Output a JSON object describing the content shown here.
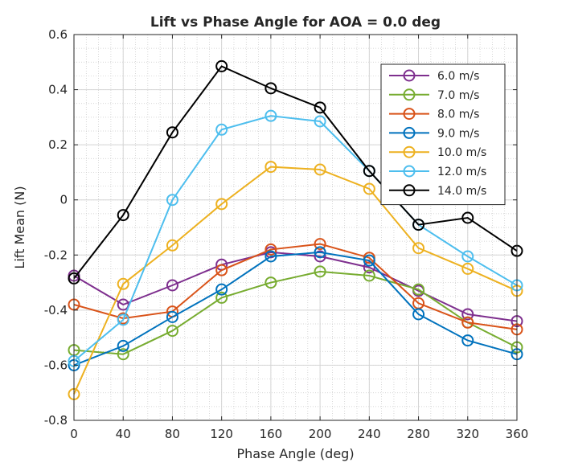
{
  "chart_data": {
    "type": "line",
    "title": "Lift vs Phase Angle for AOA = 0.0 deg",
    "xlabel": "Phase Angle (deg)",
    "ylabel": "Lift Mean (N)",
    "xlim": [
      0,
      360
    ],
    "ylim": [
      -0.8,
      0.6
    ],
    "xticks": [
      0,
      40,
      80,
      120,
      160,
      200,
      240,
      280,
      320,
      360
    ],
    "yticks": [
      -0.8,
      -0.6,
      -0.4,
      -0.2,
      0,
      0.2,
      0.4,
      0.6
    ],
    "ytick_labels": [
      "-0.8",
      "-0.6",
      "-0.4",
      "-0.2",
      "0",
      "0.2",
      "0.4",
      "0.6"
    ],
    "grid": true,
    "minor_grid": true,
    "legend_position": "top-right",
    "x": [
      0,
      40,
      80,
      120,
      160,
      200,
      240,
      280,
      320,
      360
    ],
    "series": [
      {
        "name": "6.0 m/s",
        "color": "#7E2F8E",
        "values": [
          -0.275,
          -0.38,
          -0.31,
          -0.235,
          -0.19,
          -0.205,
          -0.245,
          -0.33,
          -0.415,
          -0.44
        ]
      },
      {
        "name": "7.0 m/s",
        "color": "#77AC30",
        "values": [
          -0.545,
          -0.56,
          -0.475,
          -0.355,
          -0.3,
          -0.26,
          -0.275,
          -0.325,
          -0.445,
          -0.535
        ]
      },
      {
        "name": "8.0 m/s",
        "color": "#D95319",
        "values": [
          -0.38,
          -0.43,
          -0.405,
          -0.255,
          -0.18,
          -0.16,
          -0.21,
          -0.375,
          -0.445,
          -0.47
        ]
      },
      {
        "name": "9.0 m/s",
        "color": "#0072BD",
        "values": [
          -0.6,
          -0.53,
          -0.425,
          -0.325,
          -0.205,
          -0.19,
          -0.22,
          -0.415,
          -0.51,
          -0.56
        ]
      },
      {
        "name": "10.0 m/s",
        "color": "#EDB120",
        "values": [
          -0.705,
          -0.305,
          -0.165,
          -0.015,
          0.12,
          0.11,
          0.04,
          -0.175,
          -0.25,
          -0.33
        ]
      },
      {
        "name": "12.0 m/s",
        "color": "#4DBEEE",
        "values": [
          -0.585,
          -0.435,
          0.0,
          0.255,
          0.305,
          0.285,
          0.105,
          -0.09,
          -0.205,
          -0.31
        ]
      },
      {
        "name": "14.0 m/s",
        "color": "#000000",
        "values": [
          -0.285,
          -0.055,
          0.245,
          0.485,
          0.405,
          0.335,
          0.105,
          -0.09,
          -0.065,
          -0.185
        ]
      }
    ]
  }
}
